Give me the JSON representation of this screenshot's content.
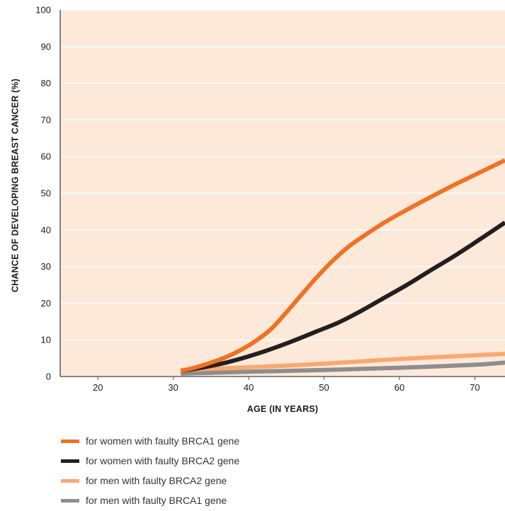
{
  "chart_data": {
    "type": "line",
    "title": "",
    "xlabel": "AGE (IN YEARS)",
    "ylabel": "CHANCE OF DEVELOPING BREAST CANCER (%)",
    "xlim": [
      15,
      74
    ],
    "ylim": [
      0,
      100
    ],
    "x_ticks": [
      20,
      30,
      40,
      50,
      60,
      70
    ],
    "y_ticks": [
      0,
      10,
      20,
      30,
      40,
      50,
      60,
      70,
      80,
      90,
      100
    ],
    "grid": true,
    "background": "#fde9d9",
    "legend_position": "bottom-left",
    "series": [
      {
        "name": "for women with faulty BRCA1 gene",
        "color": "#f07223",
        "x": [
          31,
          33,
          35,
          37,
          39,
          41,
          43,
          45,
          47,
          49,
          51,
          53,
          55,
          58,
          61,
          64,
          67,
          70,
          74
        ],
        "y": [
          1.5,
          2.5,
          3.8,
          5.3,
          7.3,
          9.8,
          13,
          17.5,
          22.3,
          27,
          31.3,
          35,
          38,
          42,
          45.5,
          48.8,
          52,
          55,
          59
        ]
      },
      {
        "name": "for women with faulty BRCA2 gene",
        "color": "#231f20",
        "x": [
          31,
          34,
          37,
          40,
          43,
          46,
          49,
          52,
          55,
          58,
          61,
          64,
          67,
          70,
          74
        ],
        "y": [
          1.5,
          2.5,
          3.8,
          5.5,
          7.5,
          9.8,
          12.3,
          14.8,
          18,
          21.5,
          25,
          28.8,
          32.5,
          36.5,
          42
        ]
      },
      {
        "name": "for men with faulty BRCA2 gene",
        "color": "#f8a971",
        "x": [
          31,
          40,
          50,
          60,
          70,
          74
        ],
        "y": [
          1.8,
          2.5,
          3.5,
          4.8,
          5.8,
          6.2
        ]
      },
      {
        "name": "for men with faulty BRCA1 gene",
        "color": "#8e8d8f",
        "x": [
          31,
          40,
          50,
          60,
          70,
          74
        ],
        "y": [
          0.8,
          1.3,
          1.8,
          2.4,
          3.2,
          3.8
        ]
      }
    ]
  }
}
